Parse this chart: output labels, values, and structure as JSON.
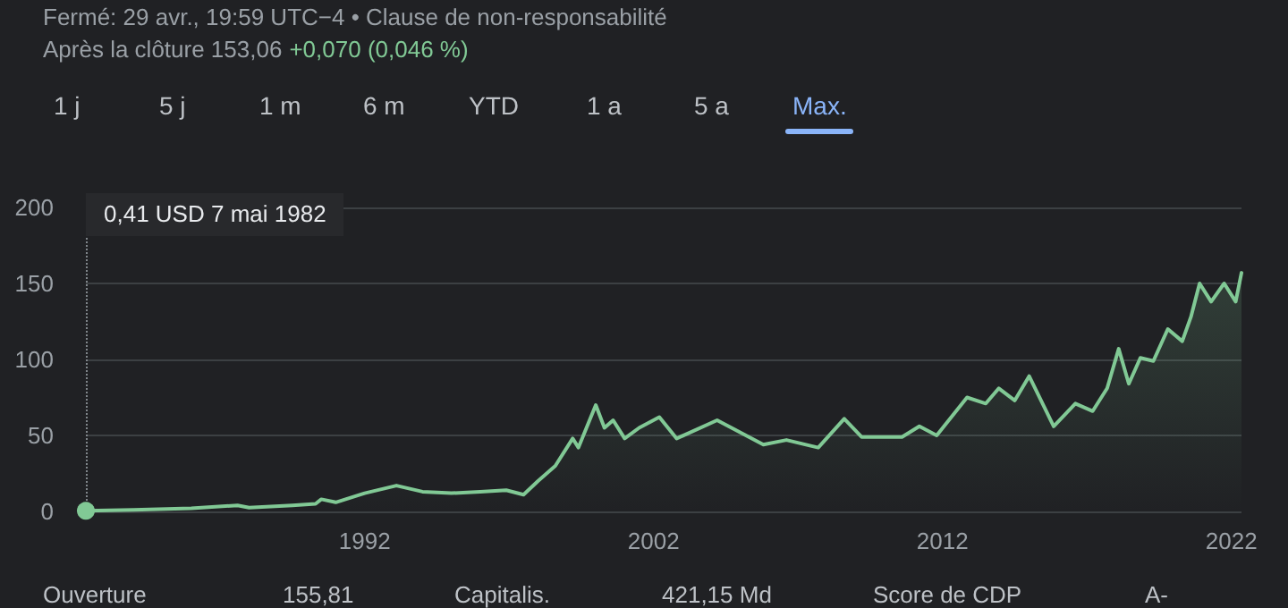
{
  "chart_data": {
    "type": "area",
    "annotations": [
      "Fermé: 29 avr., 19:59 UTC−4 • Clause de non-responsabilité",
      "Après la clôture 153,06",
      "+0,070 (0,046 %)",
      "1 j",
      "5 j",
      "1 m",
      "6 m",
      "YTD",
      "1 a",
      "5 a",
      "Max.",
      "Ouverture",
      "155,81",
      "Capitalis.",
      "421,15 Md",
      "Score de CDP",
      "A-",
      "0,41 USD  7 mai 1982"
    ],
    "x": [
      1982.35,
      1984,
      1986,
      1987.6,
      1988,
      1989.5,
      1990.3,
      1990.5,
      1991,
      1992,
      1993.1,
      1994,
      1995,
      1996,
      1996.9,
      1997.5,
      1998,
      1998.6,
      1999.2,
      1999.4,
      2000,
      2000.3,
      2000.6,
      2001,
      2001.5,
      2002.2,
      2002.8,
      2004.2,
      2005.8,
      2006.6,
      2007.7,
      2008.6,
      2009.2,
      2010.6,
      2011.2,
      2011.8,
      2012.85,
      2013.5,
      2013.95,
      2014.5,
      2015.0,
      2015.85,
      2016.6,
      2017.2,
      2017.7,
      2018.1,
      2018.45,
      2018.85,
      2019.3,
      2019.8,
      2020.3,
      2020.6,
      2020.9,
      2021.3,
      2021.75,
      2022.15,
      2022.35
    ],
    "series": [
      {
        "color": "#81c995",
        "values": [
          0.41,
          1,
          2,
          4,
          2.5,
          4,
          5,
          8,
          6,
          12,
          17,
          13,
          12,
          13,
          14,
          11,
          20,
          30,
          48,
          42,
          70,
          55,
          60,
          48,
          55,
          62,
          48,
          60,
          44,
          47,
          42,
          61,
          49,
          49,
          56,
          50,
          75,
          71,
          81,
          73,
          89,
          56,
          71,
          66,
          81,
          107,
          84,
          101,
          99,
          120,
          112,
          128,
          150,
          138,
          150,
          138,
          157
        ]
      }
    ],
    "xlim": [
      1982.35,
      2022.35
    ],
    "xticks": [
      1992,
      2002,
      2012,
      2022
    ],
    "ylim": [
      0,
      200
    ],
    "yticks": [
      0,
      50,
      100,
      150,
      200
    ],
    "grid": "y",
    "marker": "none",
    "line_style": "solid",
    "ref_lines": [
      {
        "axis": "x",
        "value": 1982.35,
        "line_style": "dotted"
      }
    ]
  }
}
